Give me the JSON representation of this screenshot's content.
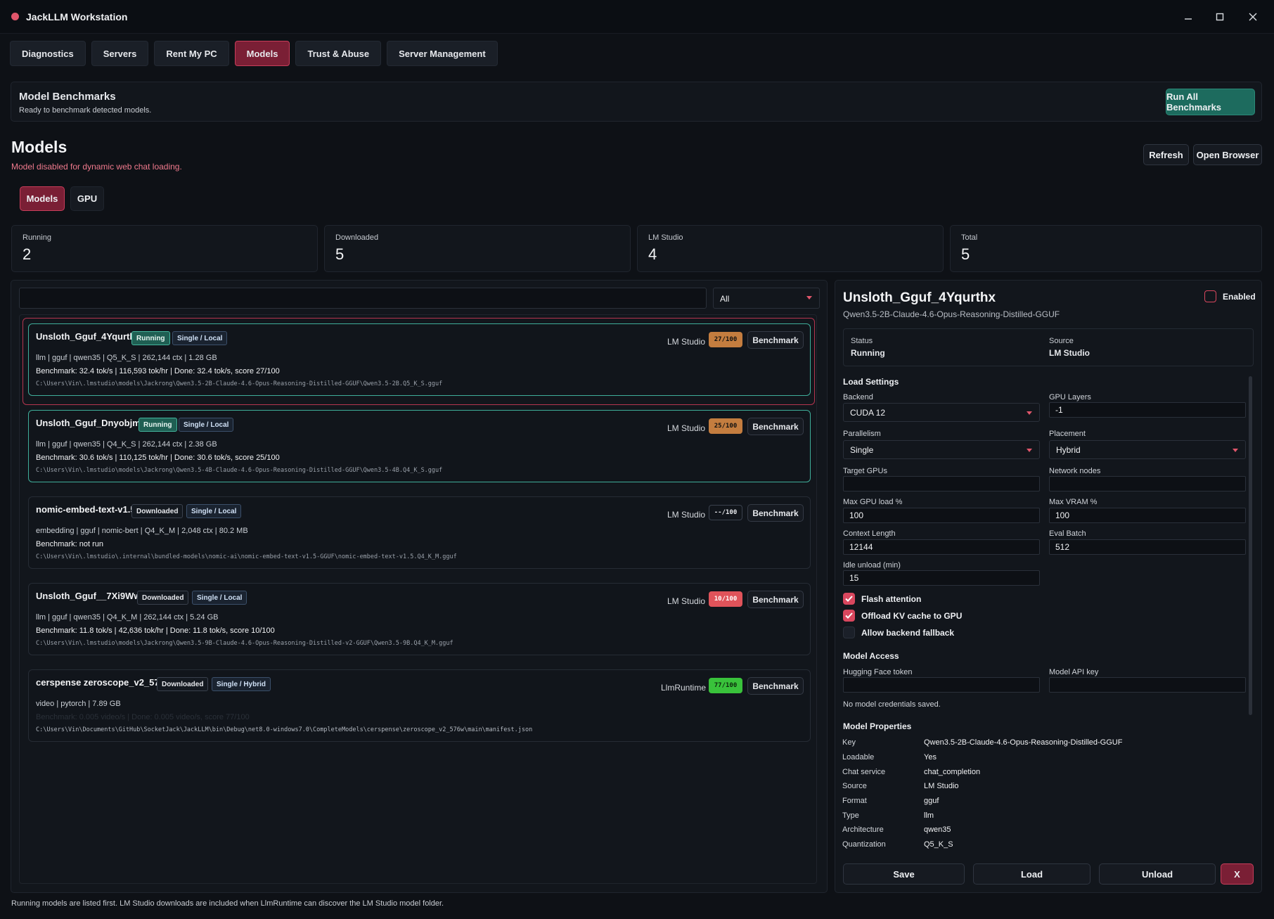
{
  "app": {
    "title": "JackLLM Workstation"
  },
  "tabs": [
    "Diagnostics",
    "Servers",
    "Rent My PC",
    "Models",
    "Trust & Abuse",
    "Server Management"
  ],
  "benchmarks": {
    "title": "Model Benchmarks",
    "status": "Ready to benchmark detected models.",
    "run_all": "Run All Benchmarks"
  },
  "models_header": {
    "title": "Models",
    "message": "Model disabled for dynamic web chat loading.",
    "refresh": "Refresh",
    "open_browser": "Open Browser"
  },
  "subtabs": [
    "Models",
    "GPU"
  ],
  "stats": [
    {
      "label": "Running",
      "value": "2"
    },
    {
      "label": "Downloaded",
      "value": "5"
    },
    {
      "label": "LM Studio",
      "value": "4"
    },
    {
      "label": "Total",
      "value": "5"
    }
  ],
  "filter": {
    "search_value": "",
    "select": "All"
  },
  "models": [
    {
      "name": "Unsloth_Gguf_4Yqurthx",
      "status": "Running",
      "mode": "Single / Local",
      "source": "LM Studio",
      "score": "27/100",
      "benchmark_btn": "Benchmark",
      "meta": "llm | gguf | qwen35 | Q5_K_S | 262,144 ctx | 1.28 GB",
      "bench": "Benchmark: 32.4 tok/s | 116,593 tok/hr | Done: 32.4 tok/s, score 27/100",
      "path": "C:\\Users\\Vin\\.lmstudio\\models\\Jackrong\\Qwen3.5-2B-Claude-4.6-Opus-Reasoning-Distilled-GGUF\\Qwen3.5-2B.Q5_K_S.gguf"
    },
    {
      "name": "Unsloth_Gguf_Dnyobjmd",
      "status": "Running",
      "mode": "Single / Local",
      "source": "LM Studio",
      "score": "25/100",
      "benchmark_btn": "Benchmark",
      "meta": "llm | gguf | qwen35 | Q4_K_S | 262,144 ctx | 2.38 GB",
      "bench": "Benchmark: 30.6 tok/s | 110,125 tok/hr | Done: 30.6 tok/s, score 25/100",
      "path": "C:\\Users\\Vin\\.lmstudio\\models\\Jackrong\\Qwen3.5-4B-Claude-4.6-Opus-Reasoning-Distilled-GGUF\\Qwen3.5-4B.Q4_K_S.gguf"
    },
    {
      "name": "nomic-embed-text-v1.5",
      "status": "Downloaded",
      "mode": "Single / Local",
      "source": "LM Studio",
      "score": "--/100",
      "benchmark_btn": "Benchmark",
      "meta": "embedding | gguf | nomic-bert | Q4_K_M | 2,048 ctx | 80.2 MB",
      "bench": "Benchmark: not run",
      "path": "C:\\Users\\Vin\\.lmstudio\\.internal\\bundled-models\\nomic-ai\\nomic-embed-text-v1.5-GGUF\\nomic-embed-text-v1.5.Q4_K_M.gguf"
    },
    {
      "name": "Unsloth_Gguf__7Xi9Wwh",
      "status": "Downloaded",
      "mode": "Single / Local",
      "source": "LM Studio",
      "score": "10/100",
      "benchmark_btn": "Benchmark",
      "meta": "llm | gguf | qwen35 | Q4_K_M | 262,144 ctx | 5.24 GB",
      "bench": "Benchmark: 11.8 tok/s | 42,636 tok/hr | Done: 11.8 tok/s, score 10/100",
      "path": "C:\\Users\\Vin\\.lmstudio\\models\\Jackrong\\Qwen3.5-9B-Claude-4.6-Opus-Reasoning-Distilled-v2-GGUF\\Qwen3.5-9B.Q4_K_M.gguf"
    },
    {
      "name": "cerspense zeroscope_v2_576w",
      "status": "Downloaded",
      "mode": "Single / Hybrid",
      "source": "LlmRuntime",
      "score": "77/100",
      "benchmark_btn": "Benchmark",
      "meta": "video | pytorch | 7.89 GB",
      "bench": "Benchmark: 0.005 video/s | Done: 0.005 video/s, score 77/100",
      "path": "C:\\Users\\Vin\\Documents\\GitHub\\SocketJack\\JackLLM\\bin\\Debug\\net8.0-windows7.0\\CompleteModels\\cerspense\\zeroscope_v2_576w\\main\\manifest.json"
    }
  ],
  "detail": {
    "title": "Unsloth_Gguf_4Yqurthx",
    "subtitle": "Qwen3.5-2B-Claude-4.6-Opus-Reasoning-Distilled-GGUF",
    "enabled_label": "Enabled",
    "status_label": "Status",
    "status_value": "Running",
    "source_label": "Source",
    "source_value": "LM Studio",
    "load_settings": "Load Settings",
    "backend_label": "Backend",
    "backend_value": "CUDA 12",
    "gpu_layers_label": "GPU Layers",
    "gpu_layers_value": "-1",
    "parallelism_label": "Parallelism",
    "parallelism_value": "Single",
    "placement_label": "Placement",
    "placement_value": "Hybrid",
    "target_gpus_label": "Target GPUs",
    "target_gpus_value": "",
    "network_nodes_label": "Network nodes",
    "network_nodes_value": "",
    "max_gpu_label": "Max GPU load %",
    "max_gpu_value": "100",
    "max_vram_label": "Max VRAM %",
    "max_vram_value": "100",
    "context_label": "Context Length",
    "context_value": "12144",
    "eval_batch_label": "Eval Batch",
    "eval_batch_value": "512",
    "idle_label": "Idle unload (min)",
    "idle_value": "15",
    "flash_attention": "Flash attention",
    "offload_kv": "Offload KV cache to GPU",
    "allow_fallback": "Allow backend fallback",
    "model_access": "Model Access",
    "hf_token_label": "Hugging Face token",
    "api_key_label": "Model API key",
    "credentials_note": "No model credentials saved.",
    "model_properties": "Model Properties",
    "properties": [
      {
        "k": "Key",
        "v": "Qwen3.5-2B-Claude-4.6-Opus-Reasoning-Distilled-GGUF"
      },
      {
        "k": "Loadable",
        "v": "Yes"
      },
      {
        "k": "Chat service",
        "v": "chat_completion"
      },
      {
        "k": "Source",
        "v": "LM Studio"
      },
      {
        "k": "Format",
        "v": "gguf"
      },
      {
        "k": "Type",
        "v": "llm"
      },
      {
        "k": "Architecture",
        "v": "qwen35"
      },
      {
        "k": "Quantization",
        "v": "Q5_K_S"
      }
    ],
    "save": "Save",
    "load": "Load",
    "unload": "Unload",
    "close": "X"
  },
  "footer": "Running models are listed first. LM Studio downloads are included when LlmRuntime can discover the LM Studio model folder."
}
